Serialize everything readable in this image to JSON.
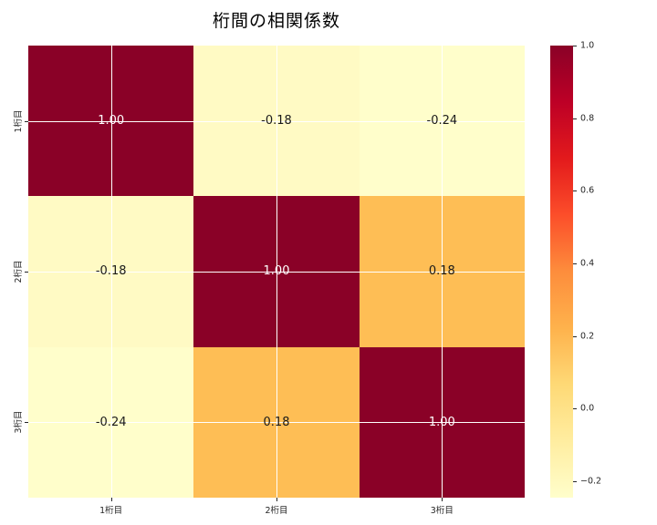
{
  "chart_data": {
    "type": "heatmap",
    "title": "桁間の相関係数",
    "categories": [
      "1桁目",
      "2桁目",
      "3桁目"
    ],
    "matrix": [
      [
        1.0,
        -0.18,
        -0.24
      ],
      [
        -0.18,
        1.0,
        0.18
      ],
      [
        -0.24,
        0.18,
        1.0
      ]
    ],
    "cell_labels": [
      [
        "1.00",
        "-0.18",
        "-0.24"
      ],
      [
        "-0.18",
        "1.00",
        "0.18"
      ],
      [
        "-0.24",
        "0.18",
        "1.00"
      ]
    ],
    "cell_colors": [
      [
        "#8a0127",
        "#fffac4",
        "#fffecb"
      ],
      [
        "#fffac4",
        "#8a0127",
        "#febe55"
      ],
      [
        "#fffecb",
        "#febe55",
        "#8a0127"
      ]
    ],
    "cell_text_colors": [
      [
        "#ffffff",
        "#1a1a1a",
        "#1a1a1a"
      ],
      [
        "#1a1a1a",
        "#ffffff",
        "#1a1a1a"
      ],
      [
        "#1a1a1a",
        "#1a1a1a",
        "#ffffff"
      ]
    ],
    "colormap": "YlOrRd",
    "colormap_stops": [
      "#fffecb",
      "#ffeda0",
      "#fed976",
      "#feb24c",
      "#fd8d3c",
      "#fc4e2a",
      "#e31a1c",
      "#bd0026",
      "#8a0127"
    ],
    "vmin": -0.245,
    "vmax": 1.0,
    "grid": true,
    "grid_color": "#ffffff",
    "colorbar_ticks": [
      {
        "label": "1.0",
        "value": 1.0
      },
      {
        "label": "0.8",
        "value": 0.8
      },
      {
        "label": "0.6",
        "value": 0.6
      },
      {
        "label": "0.4",
        "value": 0.4
      },
      {
        "label": "0.2",
        "value": 0.2
      },
      {
        "label": "0.0",
        "value": 0.0
      },
      {
        "label": "−0.2",
        "value": -0.2
      }
    ],
    "legend_position": "right-colorbar"
  }
}
